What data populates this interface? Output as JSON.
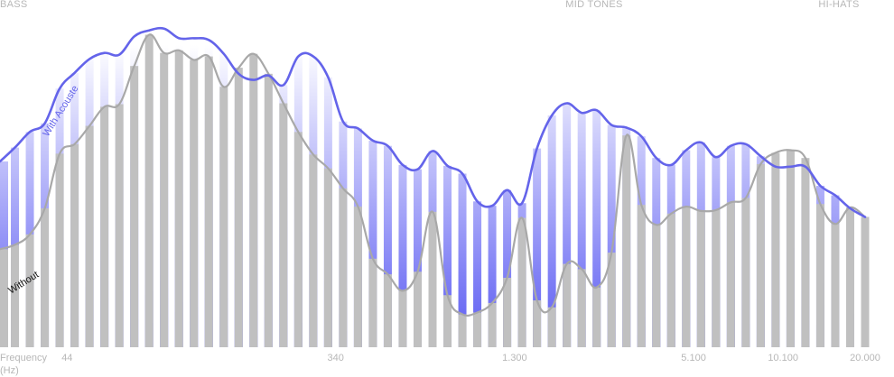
{
  "colors": {
    "with_line": "#6464ea",
    "with_bar_top": "#ffffff",
    "with_bar_bottom": "#5a5af2",
    "without_bar": "#c0c0c0",
    "without_line": "#a8a8a8",
    "text": "#b7b7b7"
  },
  "chart_data": {
    "type": "bar",
    "title": "",
    "xlabel": "Frequency (Hz)",
    "xlabel_lines": [
      "Frequency",
      "(Hz)"
    ],
    "ylabel": "",
    "ylim": [
      0,
      400
    ],
    "grid": false,
    "bands": [
      "BASS",
      "MID TONES",
      "HI-HATS"
    ],
    "x_ticks": [
      {
        "bar_index": 4.5,
        "label": "44"
      },
      {
        "bar_index": 22.5,
        "label": "340"
      },
      {
        "bar_index": 34.5,
        "label": "1.300"
      },
      {
        "bar_index": 46.5,
        "label": "5.100"
      },
      {
        "bar_index": 52.5,
        "label": "10.100"
      },
      {
        "bar_index": 58,
        "label": "20.000"
      }
    ],
    "series": [
      {
        "name": "With Acouste",
        "values": [
          214,
          230,
          248,
          258,
          298,
          316,
          332,
          339,
          337,
          358,
          365,
          367,
          356,
          356,
          354,
          338,
          315,
          308,
          313,
          302,
          335,
          335,
          311,
          260,
          252,
          238,
          232,
          210,
          205,
          226,
          209,
          200,
          168,
          163,
          181,
          166,
          229,
          267,
          281,
          270,
          273,
          256,
          253,
          243,
          218,
          210,
          227,
          236,
          219,
          232,
          234,
          220,
          208,
          208,
          208,
          186,
          175,
          160,
          150
        ]
      },
      {
        "name": "Without",
        "values": [
          113,
          118,
          130,
          160,
          223,
          234,
          255,
          277,
          280,
          324,
          360,
          339,
          342,
          331,
          335,
          300,
          322,
          338,
          315,
          281,
          248,
          222,
          206,
          183,
          162,
          102,
          84,
          65,
          87,
          156,
          60,
          38,
          40,
          51,
          80,
          149,
          54,
          46,
          96,
          90,
          69,
          109,
          244,
          164,
          141,
          154,
          162,
          157,
          158,
          167,
          172,
          211,
          224,
          227,
          218,
          165,
          142,
          161,
          150
        ]
      }
    ]
  }
}
